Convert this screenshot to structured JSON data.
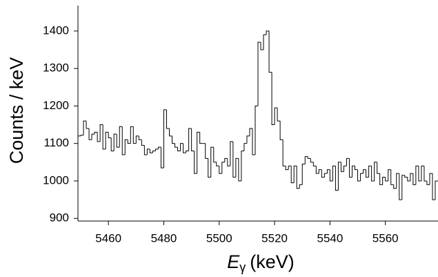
{
  "chart_data": {
    "type": "histogram",
    "y_label": "Counts / keV",
    "x_label": {
      "symbol": "E",
      "subscript": "γ",
      "unit": "(keV)"
    },
    "bins": [
      5449,
      5450,
      5451,
      5452,
      5453,
      5454,
      5455,
      5456,
      5457,
      5458,
      5459,
      5460,
      5461,
      5462,
      5463,
      5464,
      5465,
      5466,
      5467,
      5468,
      5469,
      5470,
      5471,
      5472,
      5473,
      5474,
      5475,
      5476,
      5477,
      5478,
      5479,
      5480,
      5481,
      5482,
      5483,
      5484,
      5485,
      5486,
      5487,
      5488,
      5489,
      5490,
      5491,
      5492,
      5493,
      5494,
      5495,
      5496,
      5497,
      5498,
      5499,
      5500,
      5501,
      5502,
      5503,
      5504,
      5505,
      5506,
      5507,
      5508,
      5509,
      5510,
      5511,
      5512,
      5513,
      5514,
      5515,
      5516,
      5517,
      5518,
      5519,
      5520,
      5521,
      5522,
      5523,
      5524,
      5525,
      5526,
      5527,
      5528,
      5529,
      5530,
      5531,
      5532,
      5533,
      5534,
      5535,
      5536,
      5537,
      5538,
      5539,
      5540,
      5541,
      5542,
      5543,
      5544,
      5545,
      5546,
      5547,
      5548,
      5549,
      5550,
      5551,
      5552,
      5553,
      5554,
      5555,
      5556,
      5557,
      5558,
      5559,
      5560,
      5561,
      5562,
      5563,
      5564,
      5565,
      5566,
      5567,
      5568,
      5569,
      5570,
      5571,
      5572,
      5573,
      5574,
      5575,
      5576,
      5577,
      5578,
      5579
    ],
    "values": [
      1120,
      1122,
      1160,
      1140,
      1110,
      1125,
      1130,
      1105,
      1150,
      1085,
      1130,
      1115,
      1080,
      1125,
      1090,
      1145,
      1070,
      1110,
      1100,
      1145,
      1100,
      1120,
      1110,
      1095,
      1070,
      1085,
      1075,
      1080,
      1085,
      1090,
      1035,
      1190,
      1140,
      1120,
      1100,
      1090,
      1080,
      1100,
      1075,
      1080,
      1140,
      1080,
      1020,
      1130,
      1100,
      1100,
      1060,
      1010,
      1090,
      1050,
      1040,
      1020,
      1050,
      1060,
      1040,
      1105,
      1010,
      1060,
      1000,
      1080,
      1100,
      1120,
      1140,
      1070,
      1200,
      1370,
      1350,
      1390,
      1400,
      1290,
      1150,
      1195,
      1160,
      1110,
      1040,
      1030,
      1040,
      995,
      1040,
      980,
      990,
      1045,
      1065,
      1060,
      1050,
      1040,
      1020,
      1030,
      1010,
      1020,
      1030,
      1000,
      1040,
      975,
      1050,
      1025,
      1040,
      1060,
      1010,
      1040,
      1030,
      1000,
      1020,
      1030,
      1010,
      1040,
      1000,
      1050,
      1020,
      990,
      1010,
      1000,
      1030,
      990,
      980,
      1020,
      950,
      1015,
      1010,
      1000,
      1020,
      990,
      1040,
      1000,
      1040,
      1000,
      990,
      1020,
      950,
      1000
    ],
    "color": "#000000",
    "xlim": [
      5449,
      5579
    ],
    "ylim": [
      893,
      1468
    ],
    "xticks": [
      5460,
      5480,
      5500,
      5520,
      5540,
      5560
    ],
    "yticks": [
      900,
      1000,
      1100,
      1200,
      1300,
      1400
    ]
  }
}
